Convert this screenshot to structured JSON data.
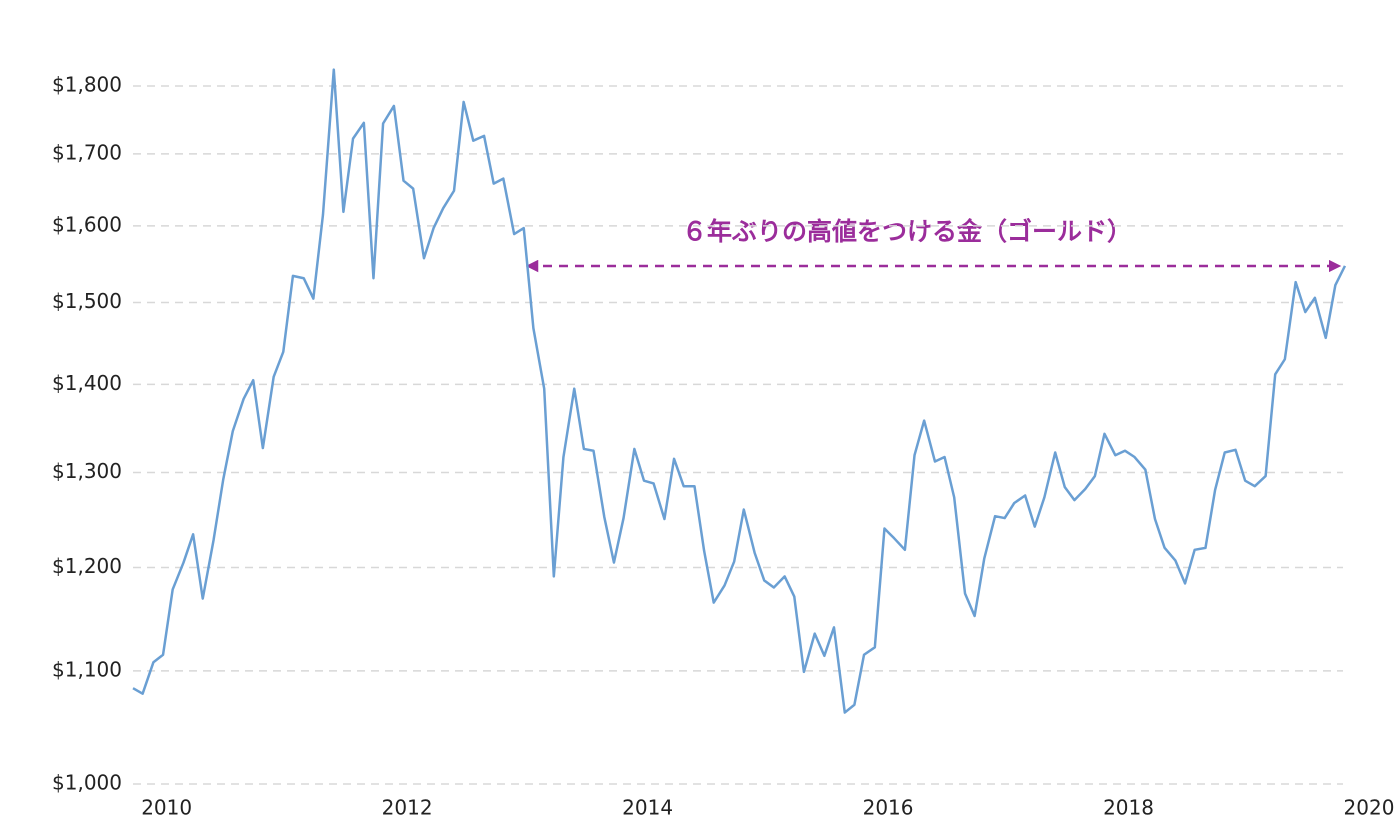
{
  "chart_data": {
    "type": "line",
    "log_y": true,
    "grid": true,
    "annotation": "６年ぶりの高値をつける金（ゴールド）",
    "xlim": [
      2009.72,
      2020
    ],
    "xticks": [
      2010,
      2012,
      2014,
      2016,
      2018,
      2020
    ],
    "ylim": [
      1000,
      1800
    ],
    "yticks": [
      {
        "value": 1000,
        "label": "$1,000"
      },
      {
        "value": 1100,
        "label": "$1,100"
      },
      {
        "value": 1200,
        "label": "$1,200"
      },
      {
        "value": 1300,
        "label": "$1,300"
      },
      {
        "value": 1400,
        "label": "$1,400"
      },
      {
        "value": 1500,
        "label": "$1,500"
      },
      {
        "value": 1600,
        "label": "$1,600"
      },
      {
        "value": 1700,
        "label": "$1,700"
      },
      {
        "value": 1800,
        "label": "$1,800"
      }
    ],
    "x": [
      2009.72,
      2009.8,
      2009.89,
      2009.97,
      2010.05,
      2010.14,
      2010.22,
      2010.3,
      2010.39,
      2010.47,
      2010.55,
      2010.64,
      2010.72,
      2010.8,
      2010.89,
      2010.97,
      2011.05,
      2011.14,
      2011.22,
      2011.3,
      2011.39,
      2011.47,
      2011.55,
      2011.64,
      2011.72,
      2011.8,
      2011.89,
      2011.97,
      2012.05,
      2012.14,
      2012.22,
      2012.3,
      2012.39,
      2012.47,
      2012.55,
      2012.64,
      2012.72,
      2012.8,
      2012.89,
      2012.97,
      2013.05,
      2013.14,
      2013.22,
      2013.3,
      2013.39,
      2013.47,
      2013.55,
      2013.64,
      2013.72,
      2013.8,
      2013.89,
      2013.97,
      2014.05,
      2014.14,
      2014.22,
      2014.3,
      2014.39,
      2014.47,
      2014.55,
      2014.64,
      2014.72,
      2014.8,
      2014.89,
      2014.97,
      2015.05,
      2015.14,
      2015.22,
      2015.3,
      2015.39,
      2015.47,
      2015.55,
      2015.64,
      2015.72,
      2015.8,
      2015.89,
      2015.97,
      2016.05,
      2016.14,
      2016.22,
      2016.3,
      2016.39,
      2016.47,
      2016.55,
      2016.64,
      2016.72,
      2016.8,
      2016.89,
      2016.97,
      2017.05,
      2017.14,
      2017.22,
      2017.3,
      2017.39,
      2017.47,
      2017.55,
      2017.64,
      2017.72,
      2017.8,
      2017.89,
      2017.97,
      2018.05,
      2018.14,
      2018.22,
      2018.3,
      2018.39,
      2018.47,
      2018.55,
      2018.64,
      2018.72,
      2018.8,
      2018.89,
      2018.97,
      2019.05,
      2019.14,
      2019.22,
      2019.3,
      2019.39,
      2019.47,
      2019.55,
      2019.64,
      2019.72,
      2019.8
    ],
    "series": [
      {
        "color": "#6a9fd3",
        "values": [
          1084,
          1079,
          1108,
          1115,
          1178,
          1205,
          1234,
          1169,
          1228,
          1292,
          1346,
          1383,
          1405,
          1327,
          1409,
          1439,
          1534,
          1531,
          1505,
          1615,
          1825,
          1619,
          1722,
          1745,
          1531,
          1744,
          1770,
          1662,
          1651,
          1557,
          1597,
          1624,
          1648,
          1776,
          1719,
          1726,
          1658,
          1665,
          1589,
          1597,
          1468,
          1395,
          1191,
          1317,
          1395,
          1326,
          1324,
          1252,
          1205,
          1251,
          1326,
          1291,
          1288,
          1250,
          1315,
          1285,
          1285,
          1217,
          1165,
          1182,
          1206,
          1260,
          1215,
          1187,
          1180,
          1191,
          1171,
          1099,
          1135,
          1114,
          1141,
          1062,
          1069,
          1115,
          1122,
          1240,
          1230,
          1218,
          1319,
          1358,
          1312,
          1317,
          1273,
          1174,
          1152,
          1209,
          1253,
          1251,
          1267,
          1275,
          1242,
          1273,
          1322,
          1284,
          1270,
          1282,
          1296,
          1343,
          1319,
          1324,
          1317,
          1303,
          1250,
          1220,
          1207,
          1184,
          1218,
          1220,
          1281,
          1322,
          1325,
          1291,
          1285,
          1296,
          1412,
          1430,
          1526,
          1488,
          1506,
          1456,
          1522,
          1547
        ]
      }
    ]
  }
}
